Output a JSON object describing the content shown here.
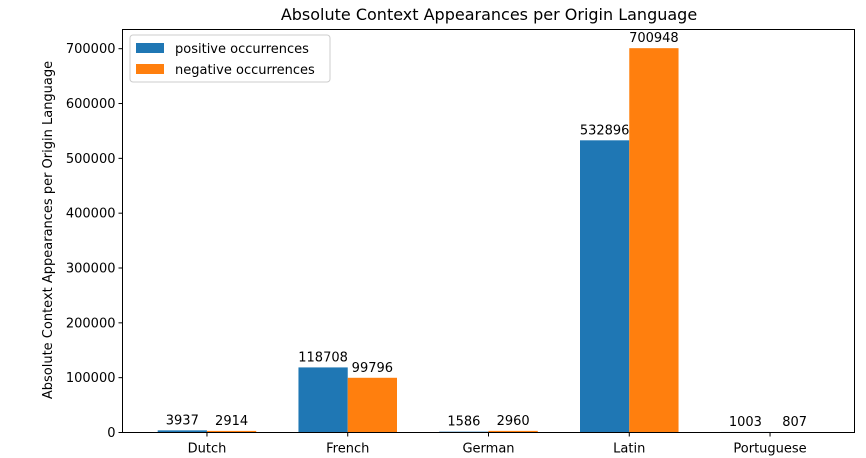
{
  "chart_data": {
    "type": "bar",
    "title": "Absolute Context Appearances per Origin Language",
    "xlabel": "",
    "ylabel": "Absolute Context Appearances per Origin Language",
    "categories": [
      "Dutch",
      "French",
      "German",
      "Latin",
      "Portuguese"
    ],
    "series": [
      {
        "name": "positive occurrences",
        "color": "#1f77b4",
        "values": [
          3937,
          118708,
          1586,
          532896,
          1003
        ]
      },
      {
        "name": "negative occurrences",
        "color": "#ff7f0e",
        "values": [
          2914,
          99796,
          2960,
          700948,
          807
        ]
      }
    ],
    "ylim": [
      0,
      735000
    ],
    "yticks": [
      0,
      100000,
      200000,
      300000,
      400000,
      500000,
      600000,
      700000
    ],
    "ytick_labels": [
      "0",
      "100000",
      "200000",
      "300000",
      "400000",
      "500000",
      "600000",
      "700000"
    ],
    "data_labels": true,
    "grid": false,
    "legend_position": "top-left"
  }
}
